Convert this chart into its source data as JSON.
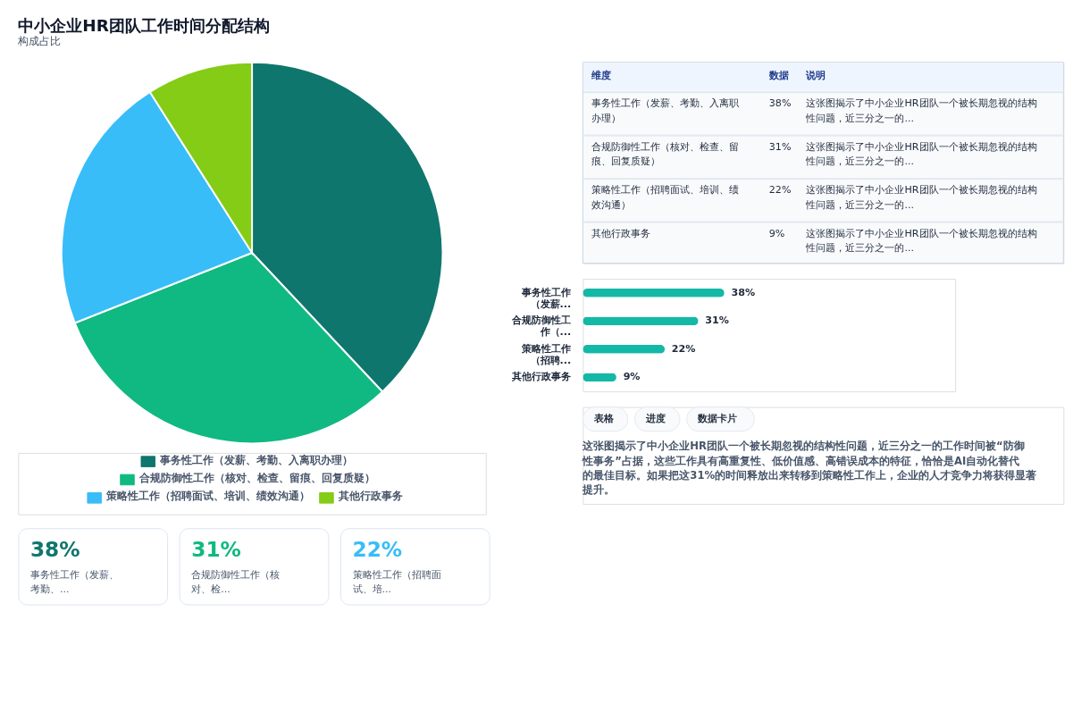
{
  "chart_data": [
    {
      "type": "pie",
      "title": "中小企业HR团队工作时间分配结构",
      "subtitle": "构成占比",
      "categories": [
        "事务性工作（发薪、考勤、入离职办理）",
        "合规防御性工作（核对、检查、留痕、回复质疑）",
        "策略性工作（招聘面试、培训、绩效沟通）",
        "其他行政事务"
      ],
      "values": [
        38,
        31,
        22,
        9
      ],
      "colors": [
        "#0f766e",
        "#10b981",
        "#38bdf8",
        "#84cc16"
      ],
      "legend": "bottom"
    },
    {
      "type": "other",
      "annotations": [
        "维度",
        "数据",
        "说明",
        "事务性工作（发薪、考勤、入离职办理）",
        "38%",
        "这张图揭示了中小企业HR团队一个被长期忽视的结构性问题，近三分之一的...",
        "合规防御性工作（核对、检查、留痕、回复质疑）",
        "31%",
        "这张图揭示了中小企业HR团队一个被长期忽视的结构性问题，近三分之一的...",
        "策略性工作（招聘面试、培训、绩效沟通）",
        "22%",
        "这张图揭示了中小企业HR团队一个被长期忽视的结构性问题，近三分之一的...",
        "其他行政事务",
        "9%",
        "这张图揭示了中小企业HR团队一个被长期忽视的结构性问题，近三分之一的..."
      ]
    },
    {
      "type": "bar",
      "orientation": "horizontal",
      "categories": [
        "事务性工作（发薪...",
        "合规防御性工作（...",
        "策略性工作（招聘...",
        "其他行政事务"
      ],
      "values": [
        38,
        31,
        22,
        9
      ],
      "color": "#14b8a6",
      "xlim": [
        0,
        100
      ],
      "value_labels": [
        "38%",
        "31%",
        "22%",
        "9%"
      ],
      "tick_labels": "y"
    },
    {
      "type": "other",
      "categories": [
        "事务性工作（发薪、考勤、...",
        "合规防御性工作（核对、检...",
        "策略性工作（招聘面试、培..."
      ],
      "values": [
        38,
        31,
        22
      ],
      "colors": [
        "#0f766e",
        "#10b981",
        "#38bdf8"
      ],
      "value_labels": [
        "38%",
        "31%",
        "22%"
      ]
    },
    {
      "type": "other",
      "annotations": [
        "表格",
        "进度",
        "数据卡片",
        "这张图揭示了中小企业HR团队一个被长期忽视的结构性问题，近三分之一的工作时间被“防御性事务”占据，这些工作具有高重复性、低价值感、高错误成本的特征，恰恰是AI自动化替代的最佳目标。如果把这31%的时间释放出来转移到策略性工作上，企业的人才竞争力将获得显著提升。"
      ]
    }
  ]
}
